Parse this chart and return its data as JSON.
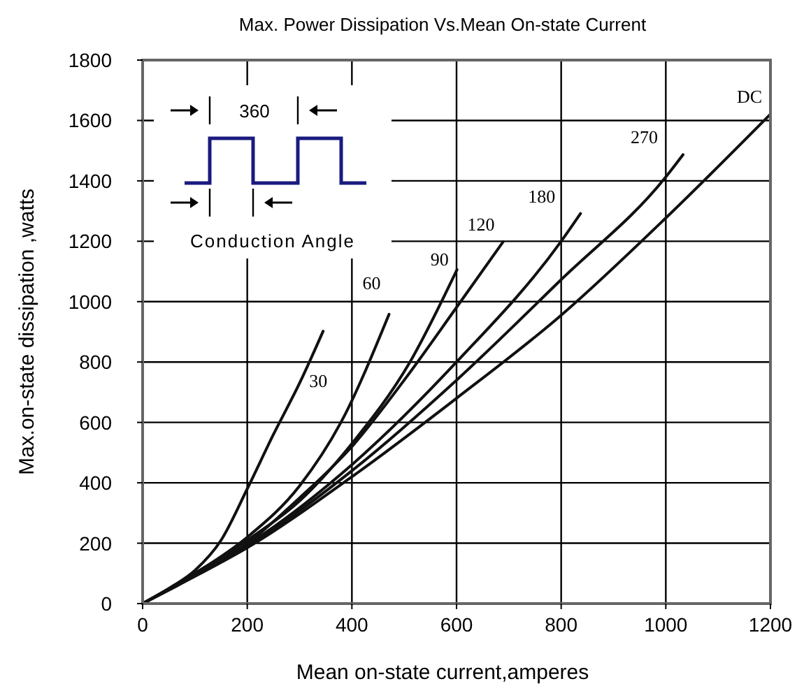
{
  "chart_data": {
    "type": "line",
    "title": "Max. Power Dissipation Vs.Mean On-state Current",
    "xlabel": "Mean on-state current,amperes",
    "ylabel": "Max.on-state dissipation ,watts",
    "annotations": [
      "360",
      "Conduction Angle"
    ],
    "xlim": [
      0,
      1200
    ],
    "xticks": [
      0,
      200,
      400,
      600,
      800,
      1000,
      1200
    ],
    "ylim": [
      0,
      1800
    ],
    "yticks": [
      0,
      200,
      400,
      600,
      800,
      1000,
      1200,
      1400,
      1600,
      1800
    ],
    "grid": true,
    "marker": "none",
    "line_style": "solid",
    "series": [
      {
        "name": "30",
        "color": "#111111",
        "x": [
          0,
          50,
          100,
          150,
          200,
          250,
          300,
          345
        ],
        "values": [
          0,
          50,
          110,
          210,
          380,
          560,
          730,
          902
        ]
      },
      {
        "name": "60",
        "color": "#111111",
        "x": [
          0,
          100,
          200,
          300,
          379,
          471
        ],
        "values": [
          0,
          100,
          220,
          390,
          600,
          958
        ]
      },
      {
        "name": "90",
        "color": "#111111",
        "x": [
          0,
          100,
          200,
          300,
          400,
          511,
          601
        ],
        "values": [
          0,
          100,
          210,
          340,
          530,
          800,
          1106
        ]
      },
      {
        "name": "120",
        "color": "#111111",
        "x": [
          0,
          100,
          200,
          300,
          400,
          500,
          600,
          689
        ],
        "values": [
          0,
          98,
          200,
          350,
          520,
          740,
          981,
          1198
        ]
      },
      {
        "name": "180",
        "color": "#111111",
        "x": [
          0,
          100,
          200,
          400,
          600,
          800,
          837
        ],
        "values": [
          0,
          95,
          195,
          460,
          800,
          1200,
          1292
        ]
      },
      {
        "name": "270",
        "color": "#111111",
        "x": [
          0,
          100,
          200,
          400,
          600,
          800,
          1000,
          1033
        ],
        "values": [
          0,
          93,
          190,
          440,
          740,
          1073,
          1413,
          1487
        ]
      },
      {
        "name": "DC",
        "color": "#111111",
        "x": [
          0,
          100,
          200,
          400,
          600,
          800,
          1000,
          1200
        ],
        "values": [
          0,
          90,
          185,
          420,
          680,
          955,
          1277,
          1621
        ]
      }
    ]
  }
}
